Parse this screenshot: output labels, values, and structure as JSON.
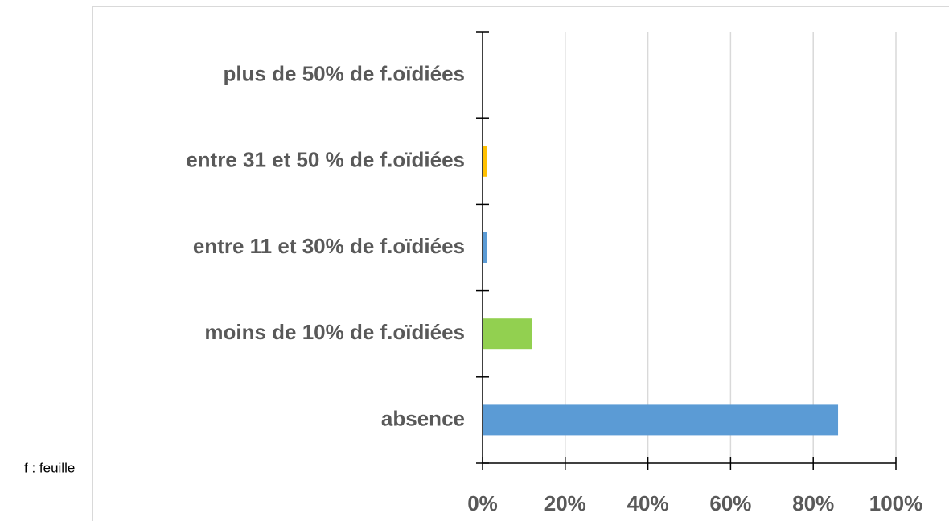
{
  "chart_data": {
    "type": "barh",
    "categories": [
      "absence",
      "moins de 10% de f.oïdiées",
      "entre 11 et 30% de f.oïdiées",
      "entre 31 et 50 % de f.oïdiées",
      "plus de  50% de f.oïdiées"
    ],
    "values": [
      86,
      12,
      1,
      1,
      0
    ],
    "colors": [
      "#5b9bd5",
      "#92d050",
      "#5b9bd5",
      "#ffc000",
      "#5b9bd5"
    ],
    "xlim": [
      0,
      100
    ],
    "xticks": [
      {
        "value": 0,
        "label": "0%"
      },
      {
        "value": 20,
        "label": "20%"
      },
      {
        "value": 40,
        "label": "40%"
      },
      {
        "value": 60,
        "label": "60%"
      },
      {
        "value": 80,
        "label": "80%"
      },
      {
        "value": 100,
        "label": "100%"
      }
    ],
    "grid": true,
    "annotation": "f : feuille"
  }
}
